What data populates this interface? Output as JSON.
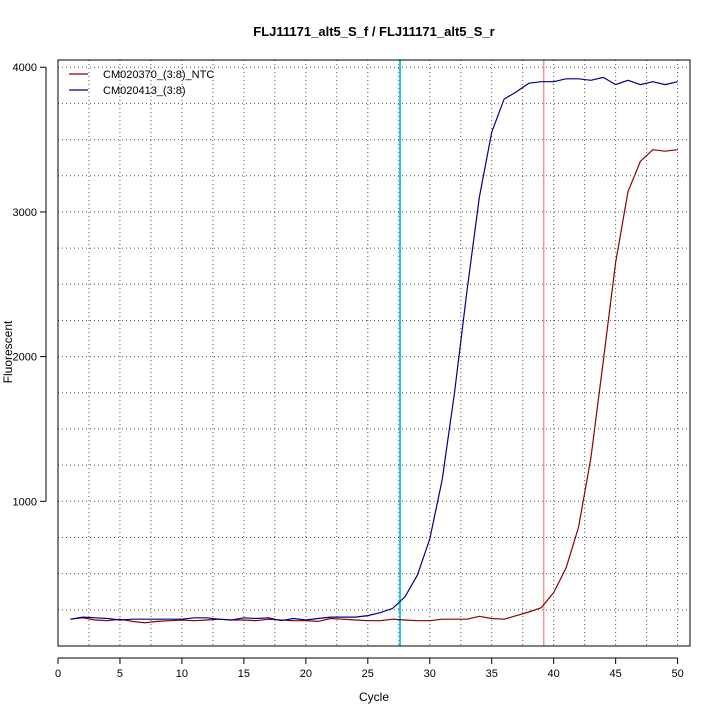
{
  "chart_data": {
    "type": "line",
    "title": "FLJ11171_alt5_S_f / FLJ11171_alt5_S_r",
    "xlabel": "Cycle",
    "ylabel": "Fluorescent",
    "xlim": [
      0,
      51
    ],
    "ylim": [
      0,
      4050
    ],
    "x_ticks": [
      0,
      5,
      10,
      15,
      20,
      25,
      30,
      35,
      40,
      45,
      50
    ],
    "y_ticks": [
      1000,
      2000,
      3000,
      4000
    ],
    "grid": "on (dotted)",
    "legend_position": "top-left",
    "x": [
      1,
      2,
      3,
      4,
      5,
      6,
      7,
      8,
      9,
      10,
      11,
      12,
      13,
      14,
      15,
      16,
      17,
      18,
      19,
      20,
      21,
      22,
      23,
      24,
      25,
      26,
      27,
      28,
      29,
      30,
      31,
      32,
      33,
      34,
      35,
      36,
      37,
      38,
      39,
      40,
      41,
      42,
      43,
      44,
      45,
      46,
      47,
      48,
      49,
      50
    ],
    "series": [
      {
        "name": "CM020370_(3:8)_NTC",
        "color": "#8b0000",
        "values": [
          185,
          195,
          180,
          175,
          185,
          170,
          160,
          170,
          175,
          180,
          175,
          180,
          185,
          180,
          180,
          175,
          185,
          180,
          175,
          175,
          170,
          190,
          185,
          180,
          175,
          175,
          185,
          180,
          175,
          175,
          185,
          185,
          185,
          205,
          190,
          185,
          210,
          235,
          265,
          370,
          540,
          820,
          1300,
          1970,
          2650,
          3140,
          3350,
          3430,
          3420,
          3430
        ]
      },
      {
        "name": "CM020413_(3:8)",
        "color": "#00008b",
        "values": [
          185,
          200,
          195,
          190,
          180,
          185,
          185,
          185,
          185,
          185,
          195,
          195,
          185,
          180,
          195,
          190,
          195,
          175,
          190,
          180,
          190,
          200,
          200,
          200,
          210,
          230,
          260,
          340,
          490,
          740,
          1150,
          1750,
          2450,
          3100,
          3550,
          3780,
          3830,
          3890,
          3900,
          3900,
          3920,
          3920,
          3910,
          3930,
          3880,
          3910,
          3880,
          3900,
          3880,
          3900
        ]
      }
    ],
    "threshold_lines": [
      {
        "x": 27.6,
        "color": "#1ec8e6"
      },
      {
        "x": 39.2,
        "color": "#f08080"
      }
    ]
  }
}
